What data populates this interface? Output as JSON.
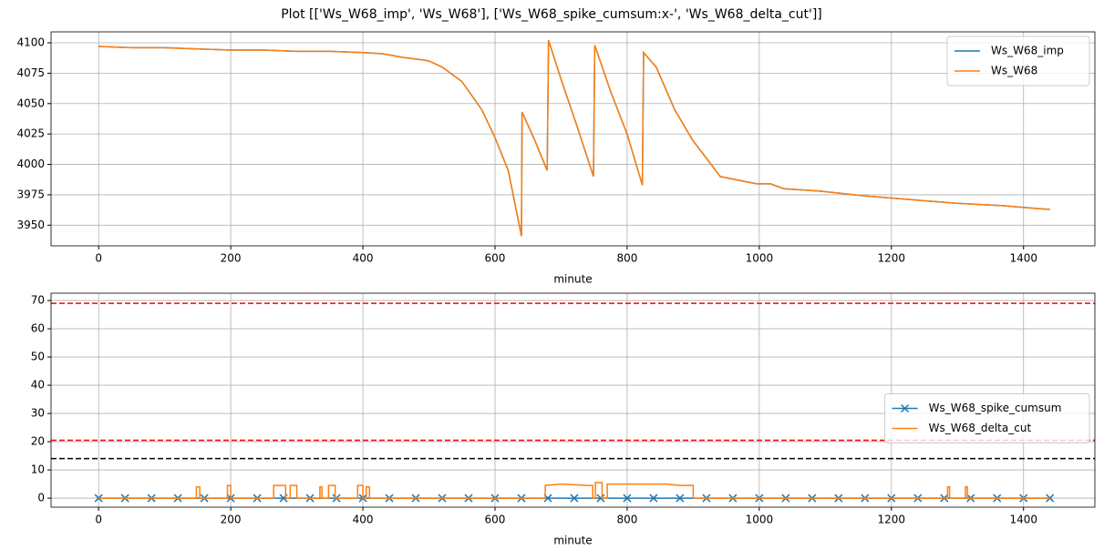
{
  "title": "Plot [['Ws_W68_imp', 'Ws_W68'], ['Ws_W68_spike_cumsum:x-', 'Ws_W68_delta_cut']]",
  "chart_data": [
    {
      "type": "line",
      "xlabel": "minute",
      "xlim": [
        -72,
        1508
      ],
      "ylim": [
        3933,
        4109
      ],
      "xticks": [
        0,
        200,
        400,
        600,
        800,
        1000,
        1200,
        1400
      ],
      "yticks": [
        3950,
        3975,
        4000,
        4025,
        4050,
        4075,
        4100
      ],
      "grid": true,
      "legend": "upper right",
      "series": [
        {
          "name": "Ws_W68_imp",
          "color": "#1f77b4",
          "x": [
            0,
            50,
            100,
            150,
            200,
            250,
            300,
            350,
            400,
            430,
            460,
            490,
            500,
            520,
            550,
            580,
            600,
            620,
            640,
            641,
            660,
            679,
            681,
            700,
            725,
            749,
            751,
            775,
            800,
            823,
            825,
            844,
            872,
            899,
            927,
            941,
            968,
            996,
            1017,
            1037,
            1092,
            1161,
            1230,
            1299,
            1368,
            1437,
            1440
          ],
          "values": [
            4097,
            4096,
            4096,
            4095,
            4094,
            4094,
            4093,
            4093,
            4092,
            4091,
            4088,
            4086,
            4085,
            4080,
            4068,
            4045,
            4022,
            3995,
            3941,
            4043,
            4020,
            3995,
            4102,
            4070,
            4030,
            3990,
            4098,
            4060,
            4025,
            3983,
            4092,
            4080,
            4045,
            4020,
            4000,
            3990,
            3987,
            3984,
            3984,
            3980,
            3978,
            3974,
            3971,
            3968,
            3966,
            3963,
            3963
          ]
        },
        {
          "name": "Ws_W68",
          "color": "#ff7f0e",
          "x": [
            0,
            50,
            100,
            150,
            200,
            250,
            300,
            350,
            400,
            430,
            460,
            490,
            500,
            520,
            550,
            580,
            600,
            620,
            640,
            641,
            660,
            679,
            681,
            700,
            725,
            749,
            751,
            775,
            800,
            823,
            825,
            844,
            872,
            899,
            927,
            941,
            968,
            996,
            1017,
            1037,
            1092,
            1161,
            1230,
            1299,
            1368,
            1437,
            1440
          ],
          "values": [
            4097,
            4096,
            4096,
            4095,
            4094,
            4094,
            4093,
            4093,
            4092,
            4091,
            4088,
            4086,
            4085,
            4080,
            4068,
            4045,
            4022,
            3995,
            3941,
            4043,
            4020,
            3995,
            4102,
            4070,
            4030,
            3990,
            4098,
            4060,
            4025,
            3983,
            4092,
            4080,
            4045,
            4020,
            4000,
            3990,
            3987,
            3984,
            3984,
            3980,
            3978,
            3974,
            3971,
            3968,
            3966,
            3963,
            3963
          ]
        }
      ]
    },
    {
      "type": "line",
      "xlabel": "minute",
      "xlim": [
        -72,
        1508
      ],
      "ylim": [
        -3.2,
        72.6
      ],
      "xticks": [
        0,
        200,
        400,
        600,
        800,
        1000,
        1200,
        1400
      ],
      "yticks": [
        0,
        10,
        20,
        30,
        40,
        50,
        60,
        70
      ],
      "grid": true,
      "legend": "center right",
      "hlines": [
        {
          "y": 69,
          "color": "red"
        },
        {
          "y": 20.5,
          "color": "red"
        },
        {
          "y": 14,
          "color": "black"
        }
      ],
      "series": [
        {
          "name": "Ws_W68_spike_cumsum",
          "color": "#1f77b4",
          "marker": "x",
          "x": [
            0,
            40,
            80,
            120,
            160,
            200,
            240,
            280,
            320,
            360,
            400,
            440,
            480,
            520,
            560,
            600,
            640,
            680,
            720,
            760,
            800,
            840,
            880,
            920,
            960,
            1000,
            1040,
            1080,
            1120,
            1160,
            1200,
            1240,
            1280,
            1320,
            1360,
            1400,
            1440
          ],
          "values": [
            0,
            0,
            0,
            0,
            0,
            0,
            0,
            0,
            0,
            0,
            0,
            0,
            0,
            0,
            0,
            0,
            0,
            0,
            0,
            0,
            0,
            0,
            0,
            0,
            0,
            0,
            0,
            0,
            0,
            0,
            0,
            0,
            0,
            0,
            0,
            0,
            0
          ]
        },
        {
          "name": "Ws_W68_delta_cut",
          "color": "#ff7f0e",
          "x": [
            0,
            148,
            148,
            153,
            153,
            195,
            195,
            200,
            200,
            265,
            265,
            283,
            283,
            290,
            290,
            300,
            300,
            335,
            335,
            338,
            338,
            348,
            348,
            358,
            358,
            392,
            392,
            400,
            400,
            405,
            405,
            410,
            410,
            676,
            676,
            700,
            740,
            748,
            748,
            752,
            752,
            762,
            762,
            770,
            770,
            860,
            880,
            900,
            900,
            1285,
            1285,
            1288,
            1288,
            1312,
            1312,
            1315,
            1315,
            1440
          ],
          "values": [
            0,
            0,
            4,
            4,
            0,
            0,
            4.5,
            4.5,
            0,
            0,
            4.5,
            4.5,
            0,
            0,
            4.5,
            4.5,
            0,
            0,
            4,
            4,
            0,
            0,
            4.5,
            4.5,
            0,
            0,
            4.5,
            4.5,
            0,
            0,
            4,
            4,
            0,
            0,
            4.5,
            5,
            4.5,
            4.5,
            0,
            0,
            5.5,
            5.5,
            0,
            0,
            5,
            5,
            4.5,
            4.5,
            0,
            0,
            4,
            4,
            0,
            0,
            4,
            4,
            0,
            0
          ]
        }
      ]
    }
  ]
}
